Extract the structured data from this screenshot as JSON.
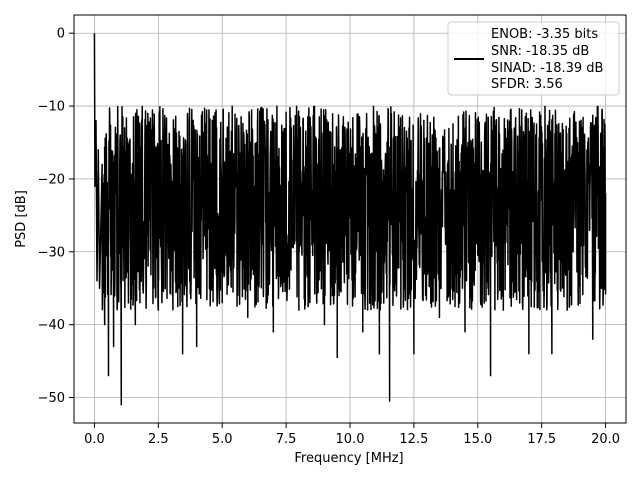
{
  "chart_data": {
    "type": "line",
    "title": "",
    "xlabel": "Frequency [MHz]",
    "ylabel": "PSD [dB]",
    "xlim": [
      -0.8,
      20.8
    ],
    "ylim": [
      -53.5,
      2.5
    ],
    "xticks": [
      0.0,
      2.5,
      5.0,
      7.5,
      10.0,
      12.5,
      15.0,
      17.5,
      20.0
    ],
    "xtick_labels": [
      "0.0",
      "2.5",
      "5.0",
      "7.5",
      "10.0",
      "12.5",
      "15.0",
      "17.5",
      "20.0"
    ],
    "yticks": [
      0,
      -10,
      -20,
      -30,
      -40,
      -50
    ],
    "ytick_labels": [
      "0",
      "−10",
      "−20",
      "−30",
      "−40",
      "−50"
    ],
    "grid": true,
    "legend_position": "top-right",
    "legend_entries": [
      "ENOB: -3.35 bits",
      "SNR: -18.35 dB",
      "SINAD: -18.39 dB",
      "SFDR: 3.56"
    ],
    "series": [
      {
        "color": "#000000",
        "description": "dense noise floor spectrum",
        "x": [
          0.0,
          0.02,
          0.06,
          0.1,
          0.15,
          0.2,
          0.3,
          0.4,
          0.45,
          0.55,
          0.65,
          0.75,
          0.85,
          1.05,
          1.3,
          1.6,
          2.0,
          2.5,
          3.0,
          3.45,
          3.7,
          4.0,
          4.5,
          5.0,
          5.5,
          6.0,
          6.5,
          7.0,
          7.5,
          8.0,
          8.5,
          9.0,
          9.5,
          9.5,
          10.0,
          10.5,
          11.0,
          11.15,
          11.55,
          12.0,
          12.5,
          12.5,
          13.0,
          13.5,
          14.0,
          14.5,
          15.0,
          15.5,
          15.75,
          16.0,
          16.5,
          17.0,
          17.5,
          17.9,
          18.0,
          18.5,
          19.0,
          19.5,
          19.8,
          20.0
        ],
        "y": [
          0,
          -21,
          -12,
          -34,
          -16,
          -35,
          -18,
          -40,
          -20,
          -47,
          -17,
          -43,
          -22,
          -51,
          -20,
          -40,
          -25,
          -38,
          -20,
          -44,
          -28,
          -43,
          -21,
          -37,
          -25,
          -39,
          -22,
          -41,
          -26,
          -38,
          -22,
          -40,
          -24,
          -44.5,
          -21,
          -41,
          -24,
          -44,
          -50.5,
          -22,
          -43,
          -44,
          -24,
          -39,
          -21,
          -41,
          -24,
          -47,
          -21,
          -38,
          -24,
          -44,
          -23,
          -44,
          -21,
          -38,
          -24,
          -42,
          -30,
          -22
        ]
      }
    ]
  }
}
